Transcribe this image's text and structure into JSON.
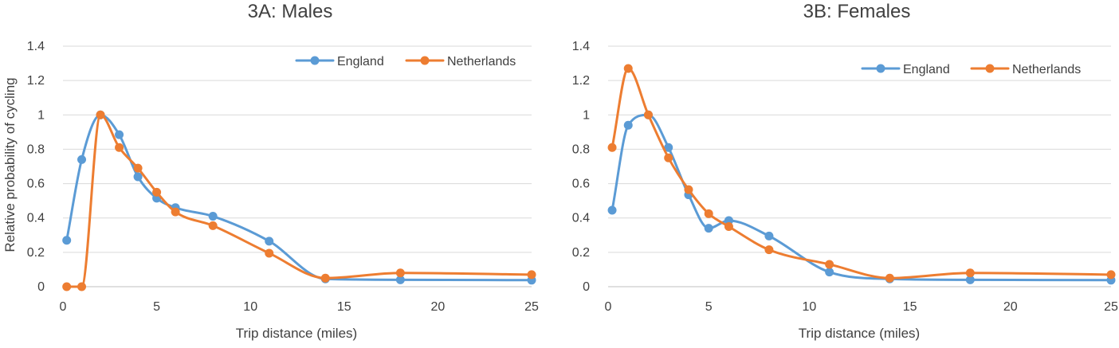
{
  "chart_data": [
    {
      "type": "line",
      "title": "3A: Males",
      "xlabel": "Trip distance (miles)",
      "ylabel": "Relative probability of cycling",
      "xlim": [
        0,
        25
      ],
      "ylim": [
        0,
        1.4
      ],
      "xticks": [
        "0",
        "5",
        "10",
        "15",
        "20",
        "25"
      ],
      "yticks": [
        "0",
        "0.2",
        "0.4",
        "0.6",
        "0.8",
        "1",
        "1.2",
        "1.4"
      ],
      "grid": true,
      "legend": "top-right",
      "series": [
        {
          "name": "England",
          "color": "#5b9bd5",
          "points": [
            [
              0.2,
              0.27
            ],
            [
              1,
              0.74
            ],
            [
              2,
              1.0
            ],
            [
              3,
              0.885
            ],
            [
              4,
              0.64
            ],
            [
              5,
              0.515
            ],
            [
              6,
              0.46
            ],
            [
              8,
              0.41
            ],
            [
              11,
              0.265
            ],
            [
              14,
              0.045
            ],
            [
              18,
              0.04
            ],
            [
              25,
              0.038
            ]
          ]
        },
        {
          "name": "Netherlands",
          "color": "#ed7d31",
          "points": [
            [
              0.2,
              0.0
            ],
            [
              1,
              0.0
            ],
            [
              2,
              1.0
            ],
            [
              3,
              0.81
            ],
            [
              4,
              0.69
            ],
            [
              5,
              0.55
            ],
            [
              6,
              0.435
            ],
            [
              8,
              0.355
            ],
            [
              11,
              0.195
            ],
            [
              14,
              0.05
            ],
            [
              18,
              0.08
            ],
            [
              25,
              0.07
            ]
          ]
        }
      ]
    },
    {
      "type": "line",
      "title": "3B: Females",
      "xlabel": "Trip distance (miles)",
      "ylabel": "",
      "xlim": [
        0,
        25
      ],
      "ylim": [
        0,
        1.4
      ],
      "xticks": [
        "0",
        "5",
        "10",
        "15",
        "20",
        "25"
      ],
      "yticks": [
        "0",
        "0.2",
        "0.4",
        "0.6",
        "0.8",
        "1",
        "1.2",
        "1.4"
      ],
      "grid": true,
      "legend": "top-right",
      "series": [
        {
          "name": "England",
          "color": "#5b9bd5",
          "points": [
            [
              0.2,
              0.445
            ],
            [
              1,
              0.94
            ],
            [
              2,
              1.0
            ],
            [
              3,
              0.81
            ],
            [
              4,
              0.535
            ],
            [
              5,
              0.34
            ],
            [
              6,
              0.385
            ],
            [
              8,
              0.295
            ],
            [
              11,
              0.085
            ],
            [
              14,
              0.045
            ],
            [
              18,
              0.04
            ],
            [
              25,
              0.038
            ]
          ]
        },
        {
          "name": "Netherlands",
          "color": "#ed7d31",
          "points": [
            [
              0.2,
              0.81
            ],
            [
              1,
              1.27
            ],
            [
              2,
              1.0
            ],
            [
              3,
              0.75
            ],
            [
              4,
              0.565
            ],
            [
              5,
              0.425
            ],
            [
              6,
              0.35
            ],
            [
              8,
              0.215
            ],
            [
              11,
              0.13
            ],
            [
              14,
              0.05
            ],
            [
              18,
              0.08
            ],
            [
              25,
              0.07
            ]
          ]
        }
      ]
    }
  ]
}
